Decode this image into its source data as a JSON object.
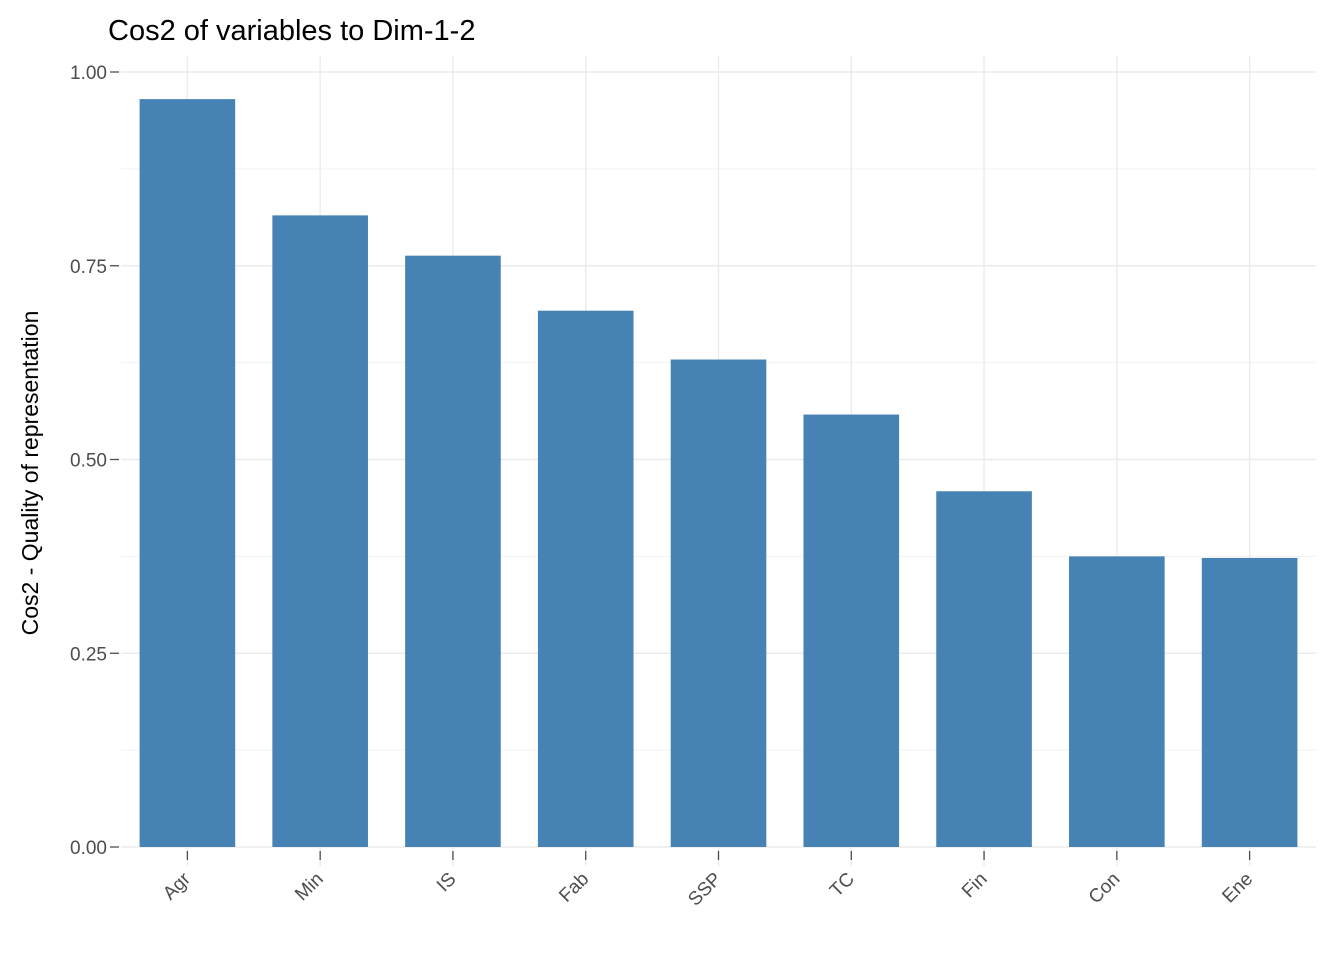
{
  "chart_data": {
    "type": "bar",
    "title": "Cos2 of variables to Dim-1-2",
    "xlabel": "",
    "ylabel": "Cos2 - Quality of representation",
    "categories": [
      "Agr",
      "Min",
      "IS",
      "Fab",
      "SSP",
      "TC",
      "Fin",
      "Con",
      "Ene"
    ],
    "values": [
      0.965,
      0.815,
      0.763,
      0.692,
      0.629,
      0.558,
      0.459,
      0.375,
      0.373
    ],
    "yticks": [
      "0.00",
      "0.25",
      "0.50",
      "0.75",
      "1.00"
    ],
    "ylim": [
      0,
      1
    ],
    "grid": true,
    "legend": "none",
    "bar_color": "#4682B4"
  }
}
